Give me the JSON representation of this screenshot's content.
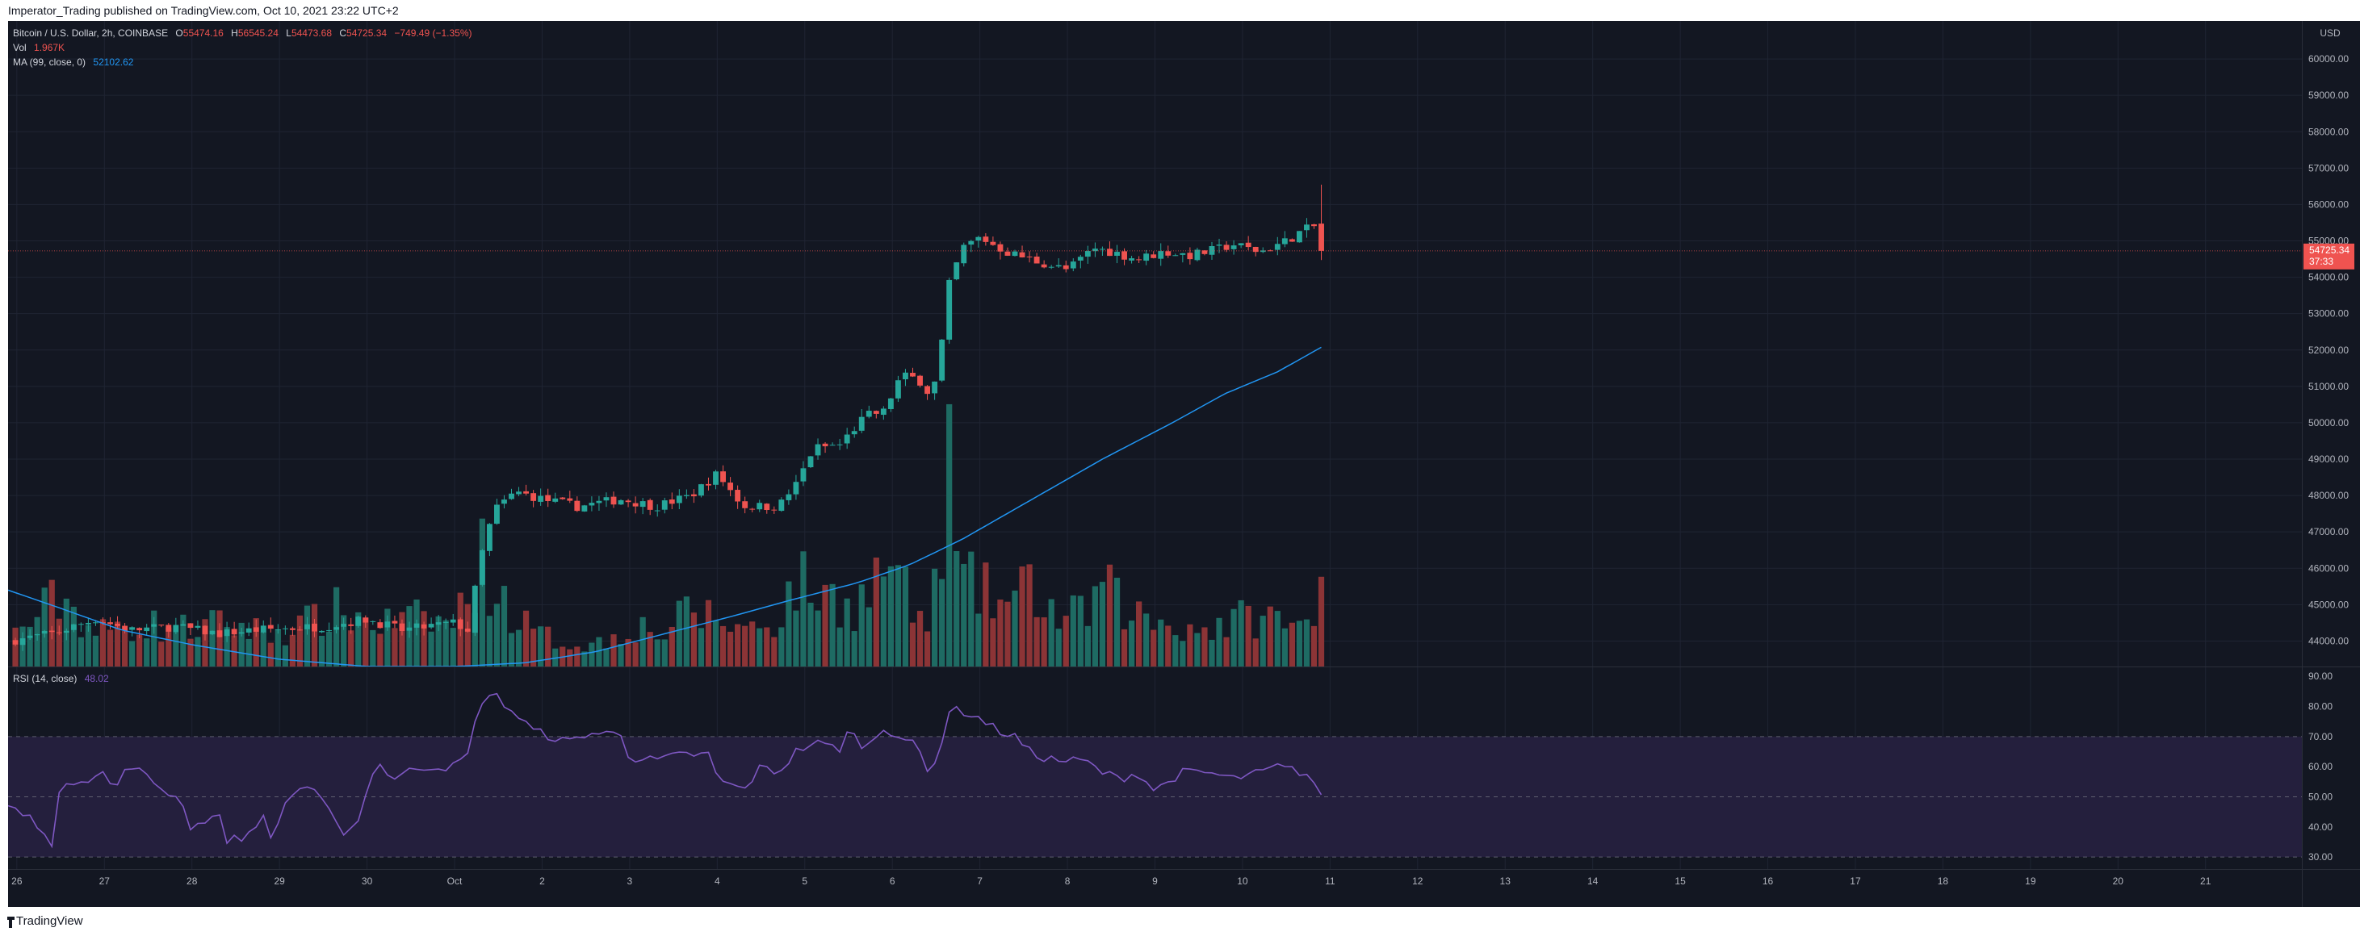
{
  "published_line": "Imperator_Trading published on TradingView.com, Oct 10, 2021 23:22 UTC+2",
  "footer_brand": "TradingView",
  "currency": "USD",
  "colors": {
    "background": "#131722",
    "up": "#26a69a",
    "down": "#ef5350",
    "up_volume": "#1e6b63",
    "down_volume": "#8c3436",
    "ma": "#2196f3",
    "rsi": "#7e57c2",
    "rsi_band": "#241f3d",
    "grid": "#1f2433",
    "text": "#b2b5be"
  },
  "legend": {
    "symbol": "Bitcoin / U.S. Dollar, 2h, COINBASE",
    "o_label": "O",
    "o_value": "55474.16",
    "h_label": "H",
    "h_value": "56545.24",
    "l_label": "L",
    "l_value": "54473.68",
    "c_label": "C",
    "c_value": "54725.34",
    "change": "−749.49 (−1.35%)",
    "vol_label": "Vol",
    "vol_value": "1.967K",
    "ma_label": "MA (99, close, 0)",
    "ma_value": "52102.62",
    "rsi_label": "RSI (14, close)",
    "rsi_value": "48.02"
  },
  "price_tag": {
    "price": "54725.34",
    "countdown": "37:33"
  },
  "chart_data": {
    "type": "candlestick",
    "title": "Bitcoin / U.S. Dollar, 2h, COINBASE",
    "interval": "2h",
    "x_axis": {
      "ticks": [
        {
          "label": "26",
          "t": 0
        },
        {
          "label": "27",
          "t": 1
        },
        {
          "label": "28",
          "t": 2
        },
        {
          "label": "29",
          "t": 3
        },
        {
          "label": "30",
          "t": 4
        },
        {
          "label": "Oct",
          "t": 5
        },
        {
          "label": "2",
          "t": 6
        },
        {
          "label": "3",
          "t": 7
        },
        {
          "label": "4",
          "t": 8
        },
        {
          "label": "5",
          "t": 9
        },
        {
          "label": "6",
          "t": 10
        },
        {
          "label": "7",
          "t": 11
        },
        {
          "label": "8",
          "t": 12
        },
        {
          "label": "9",
          "t": 13
        },
        {
          "label": "10",
          "t": 14
        },
        {
          "label": "11",
          "t": 15
        },
        {
          "label": "12",
          "t": 16
        },
        {
          "label": "13",
          "t": 17
        },
        {
          "label": "14",
          "t": 18
        },
        {
          "label": "15",
          "t": 19
        },
        {
          "label": "16",
          "t": 20
        },
        {
          "label": "17",
          "t": 21
        },
        {
          "label": "18",
          "t": 22
        },
        {
          "label": "19",
          "t": 23
        },
        {
          "label": "20",
          "t": 24
        },
        {
          "label": "21",
          "t": 25
        }
      ],
      "range": [
        -0.1,
        26.1
      ]
    },
    "price_axis": {
      "ylim": [
        43300,
        61000
      ],
      "ticks": [
        60000,
        59000,
        58000,
        57000,
        56000,
        55000,
        54000,
        53000,
        52000,
        51000,
        50000,
        49000,
        48000,
        47000,
        46000,
        45000,
        44000
      ]
    },
    "rsi_axis": {
      "ylim": [
        26,
        93
      ],
      "ticks": [
        90,
        80,
        70,
        60,
        50,
        40,
        30
      ],
      "band": [
        30,
        70
      ],
      "midline": 50
    },
    "volume_max": 3.0,
    "last_close": 54725.34,
    "ohlc_keypoints": [
      [
        -0.1,
        44000
      ],
      [
        0.4,
        44200
      ],
      [
        0.9,
        44600
      ],
      [
        1.3,
        44300
      ],
      [
        1.8,
        44400
      ],
      [
        2.3,
        44200
      ],
      [
        2.7,
        44300
      ],
      [
        3.1,
        44350
      ],
      [
        3.5,
        44400
      ],
      [
        4.0,
        44600
      ],
      [
        4.4,
        44300
      ],
      [
        4.85,
        44450
      ],
      [
        5.0,
        44500
      ],
      [
        5.15,
        44300
      ],
      [
        5.3,
        46300
      ],
      [
        5.45,
        47600
      ],
      [
        5.7,
        48100
      ],
      [
        6.0,
        47900
      ],
      [
        6.4,
        47700
      ],
      [
        6.9,
        47900
      ],
      [
        7.3,
        47700
      ],
      [
        7.7,
        48000
      ],
      [
        8.0,
        48600
      ],
      [
        8.3,
        47700
      ],
      [
        8.7,
        47700
      ],
      [
        8.9,
        48300
      ],
      [
        9.1,
        49300
      ],
      [
        9.4,
        49400
      ],
      [
        9.7,
        50200
      ],
      [
        9.9,
        50300
      ],
      [
        10.1,
        51300
      ],
      [
        10.3,
        51200
      ],
      [
        10.45,
        50700
      ],
      [
        10.55,
        51900
      ],
      [
        10.65,
        53800
      ],
      [
        10.8,
        54800
      ],
      [
        11.0,
        55100
      ],
      [
        11.3,
        54700
      ],
      [
        11.7,
        54400
      ],
      [
        12.0,
        54200
      ],
      [
        12.3,
        54800
      ],
      [
        12.5,
        54700
      ],
      [
        12.8,
        54500
      ],
      [
        13.1,
        54700
      ],
      [
        13.4,
        54600
      ],
      [
        13.6,
        54700
      ],
      [
        13.9,
        54900
      ],
      [
        14.2,
        54700
      ],
      [
        14.5,
        55000
      ],
      [
        14.7,
        55300
      ],
      [
        14.92,
        55474.16
      ]
    ],
    "volume_keypoints": [
      [
        -0.1,
        0.55
      ],
      [
        0.5,
        1.5
      ],
      [
        0.9,
        0.7
      ],
      [
        1.4,
        0.9
      ],
      [
        1.9,
        0.8
      ],
      [
        2.4,
        0.9
      ],
      [
        2.9,
        0.7
      ],
      [
        3.3,
        0.9
      ],
      [
        3.7,
        1.2
      ],
      [
        4.1,
        0.9
      ],
      [
        4.6,
        1.0
      ],
      [
        5.0,
        0.9
      ],
      [
        5.3,
        2.3
      ],
      [
        5.5,
        1.5
      ],
      [
        5.9,
        0.7
      ],
      [
        6.3,
        0.5
      ],
      [
        6.7,
        0.5
      ],
      [
        7.0,
        0.9
      ],
      [
        7.4,
        0.7
      ],
      [
        7.7,
        1.2
      ],
      [
        8.0,
        1.0
      ],
      [
        8.3,
        0.8
      ],
      [
        8.7,
        1.0
      ],
      [
        8.9,
        1.8
      ],
      [
        9.2,
        1.5
      ],
      [
        9.6,
        1.3
      ],
      [
        9.8,
        1.8
      ],
      [
        10.0,
        2.3
      ],
      [
        10.2,
        1.2
      ],
      [
        10.4,
        0.9
      ],
      [
        10.55,
        2.0
      ],
      [
        10.6,
        5.5
      ],
      [
        10.75,
        1.8
      ],
      [
        11.0,
        1.6
      ],
      [
        11.3,
        1.3
      ],
      [
        11.6,
        1.7
      ],
      [
        11.9,
        1.0
      ],
      [
        12.2,
        1.1
      ],
      [
        12.4,
        1.7
      ],
      [
        12.6,
        1.3
      ],
      [
        12.9,
        1.0
      ],
      [
        13.2,
        0.9
      ],
      [
        13.5,
        0.8
      ],
      [
        13.8,
        0.9
      ],
      [
        14.2,
        1.1
      ],
      [
        14.5,
        0.9
      ],
      [
        14.7,
        0.8
      ],
      [
        14.85,
        0.9
      ],
      [
        14.92,
        2.0
      ]
    ],
    "ma_keypoints": [
      [
        -0.1,
        45400
      ],
      [
        0.5,
        44900
      ],
      [
        1.2,
        44300
      ],
      [
        2.0,
        43900
      ],
      [
        3.0,
        43500
      ],
      [
        4.0,
        43300
      ],
      [
        5.0,
        43300
      ],
      [
        5.8,
        43400
      ],
      [
        6.6,
        43700
      ],
      [
        7.4,
        44200
      ],
      [
        8.2,
        44700
      ],
      [
        8.8,
        45100
      ],
      [
        9.6,
        45600
      ],
      [
        10.2,
        46100
      ],
      [
        10.8,
        46800
      ],
      [
        11.6,
        47900
      ],
      [
        12.4,
        49000
      ],
      [
        13.2,
        50000
      ],
      [
        13.8,
        50800
      ],
      [
        14.4,
        51400
      ],
      [
        14.92,
        52102.62
      ]
    ],
    "rsi_keypoints": [
      [
        -0.1,
        47
      ],
      [
        0.2,
        42
      ],
      [
        0.35,
        38
      ],
      [
        0.42,
        31
      ],
      [
        0.5,
        55
      ],
      [
        0.8,
        56
      ],
      [
        1.0,
        58
      ],
      [
        1.1,
        52
      ],
      [
        1.3,
        61
      ],
      [
        1.5,
        56
      ],
      [
        1.9,
        48
      ],
      [
        2.0,
        38
      ],
      [
        2.1,
        42
      ],
      [
        2.3,
        44
      ],
      [
        2.4,
        36
      ],
      [
        2.6,
        36
      ],
      [
        2.8,
        44
      ],
      [
        2.9,
        36
      ],
      [
        3.1,
        50
      ],
      [
        3.3,
        54
      ],
      [
        3.5,
        48
      ],
      [
        3.7,
        38
      ],
      [
        3.9,
        42
      ],
      [
        4.1,
        62
      ],
      [
        4.3,
        56
      ],
      [
        4.6,
        60
      ],
      [
        4.9,
        60
      ],
      [
        5.0,
        60
      ],
      [
        5.15,
        64
      ],
      [
        5.3,
        82
      ],
      [
        5.45,
        84
      ],
      [
        5.6,
        80
      ],
      [
        5.9,
        72
      ],
      [
        6.3,
        68
      ],
      [
        6.5,
        71
      ],
      [
        6.9,
        71
      ],
      [
        7.0,
        63
      ],
      [
        7.3,
        62
      ],
      [
        7.6,
        64
      ],
      [
        7.9,
        64
      ],
      [
        8.0,
        56
      ],
      [
        8.3,
        52
      ],
      [
        8.5,
        60
      ],
      [
        8.7,
        58
      ],
      [
        8.9,
        65
      ],
      [
        9.1,
        68
      ],
      [
        9.4,
        66
      ],
      [
        9.5,
        72
      ],
      [
        9.7,
        66
      ],
      [
        9.9,
        73
      ],
      [
        10.1,
        70
      ],
      [
        10.3,
        66
      ],
      [
        10.4,
        58
      ],
      [
        10.55,
        66
      ],
      [
        10.65,
        79
      ],
      [
        10.85,
        78
      ],
      [
        11.0,
        76
      ],
      [
        11.2,
        72
      ],
      [
        11.4,
        70
      ],
      [
        11.6,
        64
      ],
      [
        11.9,
        62
      ],
      [
        12.2,
        62
      ],
      [
        12.4,
        58
      ],
      [
        12.6,
        56
      ],
      [
        12.8,
        58
      ],
      [
        13.0,
        52
      ],
      [
        13.3,
        58
      ],
      [
        13.6,
        58
      ],
      [
        13.9,
        56
      ],
      [
        14.2,
        58
      ],
      [
        14.4,
        60
      ],
      [
        14.7,
        58
      ],
      [
        14.8,
        56
      ],
      [
        14.92,
        48.02
      ]
    ],
    "price_axis_labels": [
      "60000.00",
      "59000.00",
      "58000.00",
      "57000.00",
      "56000.00",
      "55000.00",
      "54000.00",
      "53000.00",
      "52000.00",
      "51000.00",
      "50000.00",
      "49000.00",
      "48000.00",
      "47000.00",
      "46000.00",
      "45000.00",
      "44000.00"
    ],
    "rsi_axis_labels": [
      "90.00",
      "80.00",
      "70.00",
      "60.00",
      "50.00",
      "40.00",
      "30.00"
    ]
  }
}
